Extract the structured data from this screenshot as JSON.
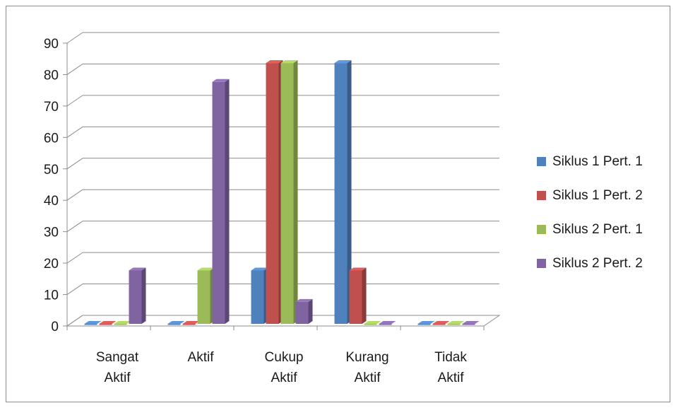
{
  "chart_data": {
    "type": "bar",
    "categories": [
      [
        "Sangat",
        "Aktif"
      ],
      [
        "Aktif"
      ],
      [
        "Cukup",
        "Aktif"
      ],
      [
        "Kurang",
        "Aktif"
      ],
      [
        "Tidak",
        "Aktif"
      ]
    ],
    "series": [
      {
        "name": "Siklus 1 Pert. 1",
        "color": "#4f81bd",
        "values": [
          0,
          0,
          17,
          83,
          0
        ]
      },
      {
        "name": "Siklus 1 Pert. 2",
        "color": "#c0504d",
        "values": [
          0,
          0,
          83,
          17,
          0
        ]
      },
      {
        "name": "Siklus 2 Pert. 1",
        "color": "#9bbb59",
        "values": [
          0,
          17,
          83,
          0,
          0
        ]
      },
      {
        "name": "Siklus 2 Pert. 2",
        "color": "#8064a2",
        "values": [
          17,
          77,
          7,
          0,
          0
        ]
      }
    ],
    "ylim": [
      0,
      90
    ],
    "yticks": [
      0,
      10,
      20,
      30,
      40,
      50,
      60,
      70,
      80,
      90
    ],
    "grid": true,
    "legend_position": "right",
    "style": "3d-clustered-column"
  }
}
